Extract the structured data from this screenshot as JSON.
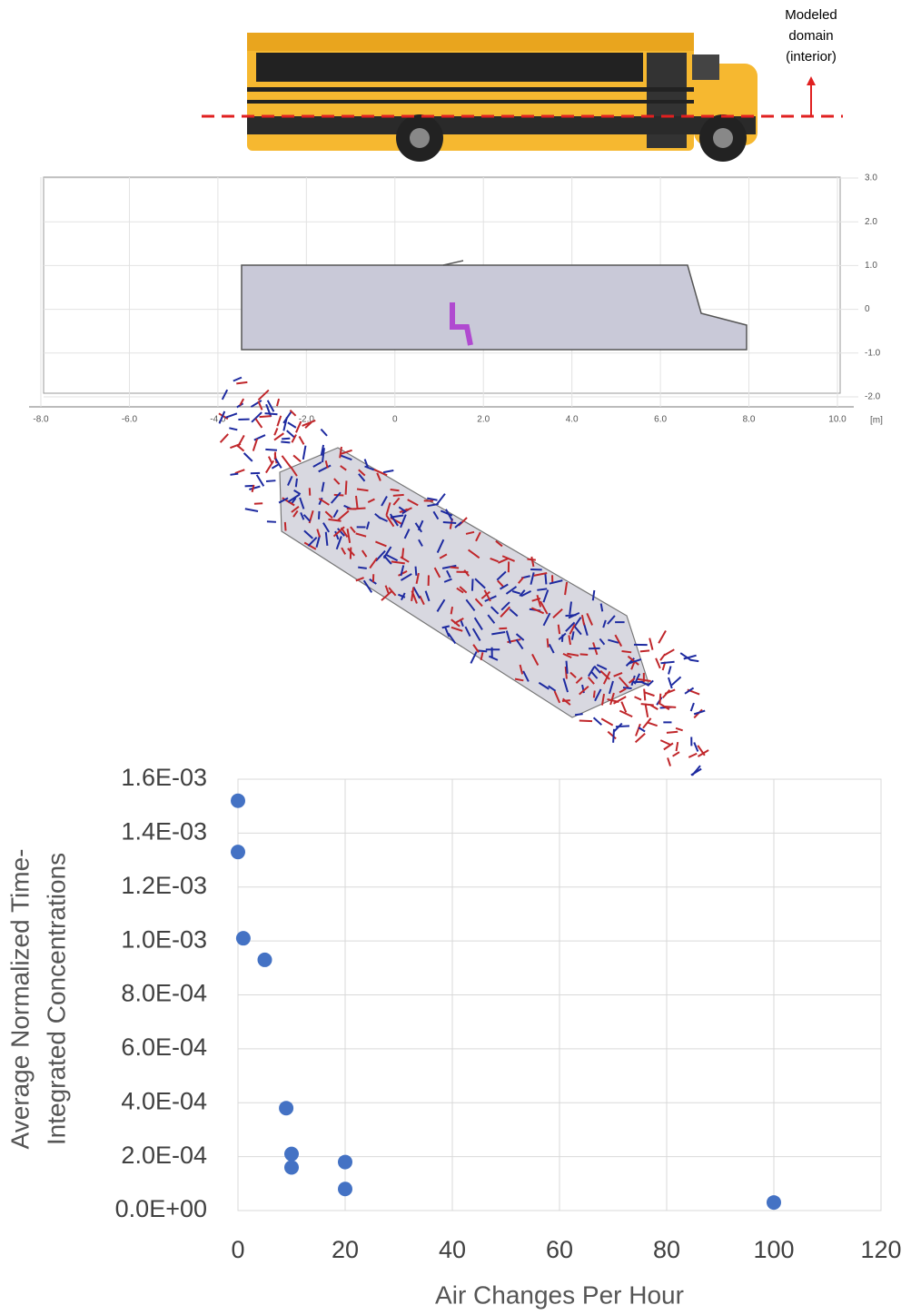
{
  "annotation": [
    "Modeled",
    "domain",
    "(interior)"
  ],
  "domain_plot": {
    "unit": "[m]",
    "xlim": [
      -8,
      10
    ],
    "ylim": [
      -2,
      3
    ],
    "xticks": [
      {
        "value": -8,
        "label": "-8.0"
      },
      {
        "value": -6,
        "label": "-6.0"
      },
      {
        "value": -4,
        "label": "-4.0"
      },
      {
        "value": -2,
        "label": "-2.0"
      },
      0,
      {
        "value": 2,
        "label": "2.0"
      },
      {
        "value": 4,
        "label": "4.0"
      },
      {
        "value": 6,
        "label": "6.0"
      },
      {
        "value": 8,
        "label": "8.0"
      },
      {
        "value": 10,
        "label": "10.0"
      }
    ],
    "yticks": [
      {
        "value": -2,
        "label": "-2.0"
      },
      {
        "value": -1,
        "label": "-1.0"
      },
      0,
      {
        "value": 1,
        "label": "1.0"
      },
      {
        "value": 2,
        "label": "2.0"
      },
      {
        "value": 3,
        "label": "3.0"
      }
    ]
  },
  "chart_data": {
    "type": "scatter",
    "xlabel": "Air Changes Per Hour",
    "ylabel": [
      "Average Normalized Time-",
      "Integrated Concentrations"
    ],
    "xlim": [
      0,
      120
    ],
    "ylim": [
      0,
      0.0016
    ],
    "xticks": [
      0,
      20,
      40,
      60,
      80,
      100,
      120
    ],
    "yticks": [
      {
        "value": 0,
        "label": "0.0E+00"
      },
      {
        "value": 0.0002,
        "label": "2.0E-04"
      },
      {
        "value": 0.0004,
        "label": "4.0E-04"
      },
      {
        "value": 0.0006,
        "label": "6.0E-04"
      },
      {
        "value": 0.0008,
        "label": "8.0E-04"
      },
      {
        "value": 0.001,
        "label": "1.0E-03"
      },
      {
        "value": 0.0012,
        "label": "1.2E-03"
      },
      {
        "value": 0.0014,
        "label": "1.4E-03"
      },
      {
        "value": 0.0016,
        "label": "1.6E-03"
      }
    ],
    "grid": true,
    "series": [
      {
        "color": "#4472c4",
        "x": [
          0,
          0,
          1,
          5,
          9,
          10,
          10,
          20,
          20,
          100
        ],
        "values": [
          0.00152,
          0.00133,
          0.00101,
          0.00093,
          0.00038,
          0.00021,
          0.00016,
          0.00018,
          8e-05,
          3e-05
        ]
      }
    ]
  }
}
